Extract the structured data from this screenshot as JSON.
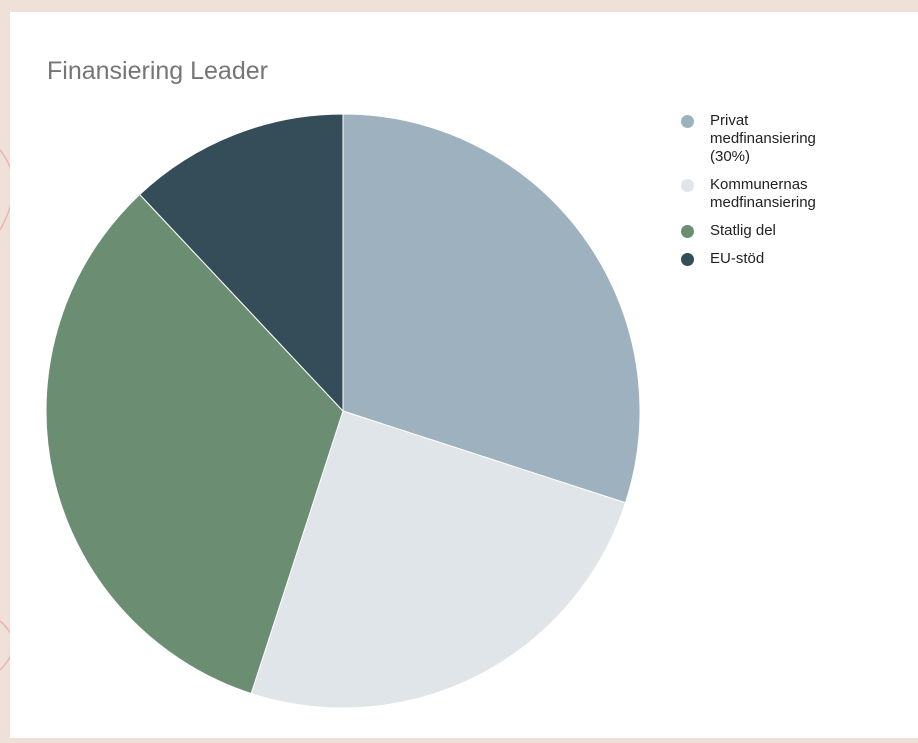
{
  "chart_data": {
    "type": "pie",
    "title": "Finansiering Leader",
    "legend_position": "right",
    "start_angle_deg": 0,
    "direction": "clockwise",
    "slices": [
      {
        "label": "Privat\nmedfinansiering\n(30%)",
        "value": 30,
        "color": "#9db1bf"
      },
      {
        "label": "Kommunernas\nmedfinansiering",
        "value": 25,
        "color": "#e0e5e9"
      },
      {
        "label": "Statlig del",
        "value": 33,
        "color": "#6b8e73"
      },
      {
        "label": "EU-stöd",
        "value": 12,
        "color": "#354d58"
      }
    ]
  }
}
